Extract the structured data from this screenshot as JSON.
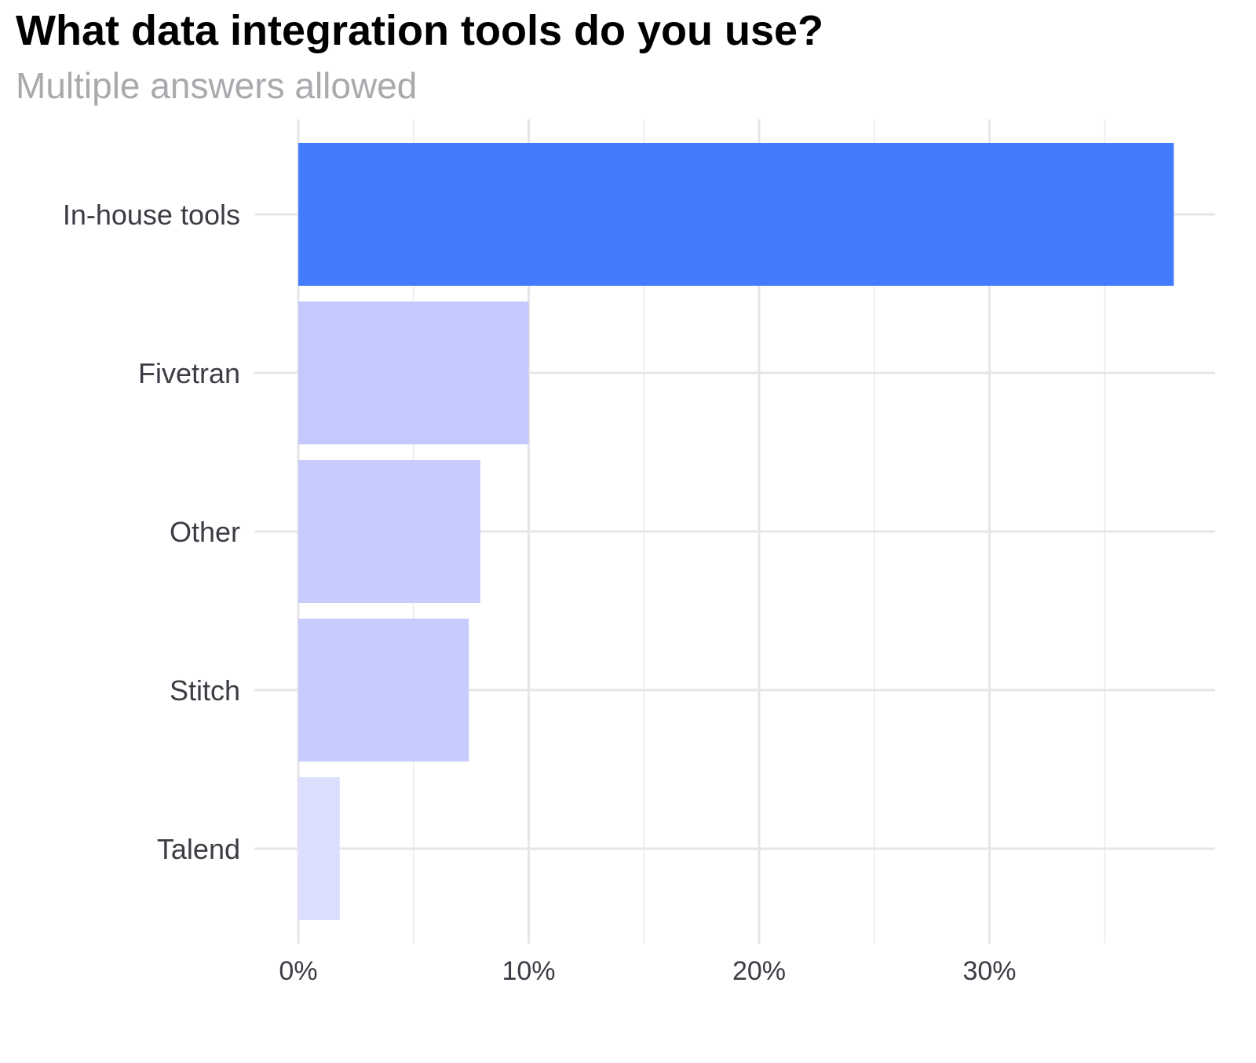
{
  "chart_data": {
    "type": "bar",
    "orientation": "horizontal",
    "title": "What data integration tools do you use?",
    "subtitle": "Multiple answers allowed",
    "categories": [
      "In-house tools",
      "Fivetran",
      "Other",
      "Stitch",
      "Talend"
    ],
    "values": [
      38.0,
      10.0,
      7.9,
      7.4,
      1.8
    ],
    "bar_colors": [
      "#437bfd",
      "#c4c8fd",
      "#c8ccfd",
      "#c8ccfd",
      "#dcdefe"
    ],
    "xlim": [
      0,
      40
    ],
    "x_ticks": [
      0,
      10,
      20,
      30
    ],
    "x_tick_labels": [
      "0%",
      "10%",
      "20%",
      "30%"
    ],
    "grid": true,
    "xlabel": "",
    "ylabel": ""
  }
}
